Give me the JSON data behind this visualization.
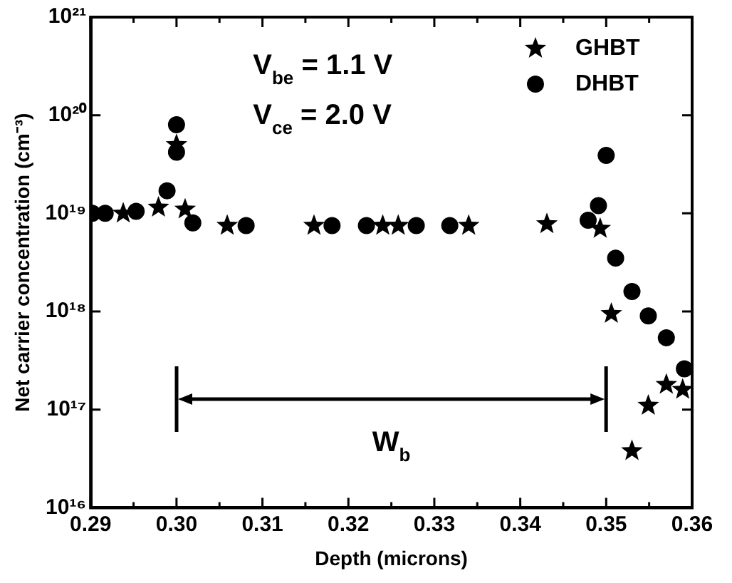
{
  "chart_data": {
    "type": "scatter",
    "xlabel": "Depth (microns)",
    "ylabel": "Net carrier concentration (cm⁻³)",
    "log": "y",
    "xlim": [
      0.29,
      0.36
    ],
    "xticks": [
      0.29,
      {
        "value": 0.295,
        "label": null
      },
      "0.30",
      {
        "value": 0.305,
        "label": null
      },
      0.31,
      {
        "value": 0.315,
        "label": null
      },
      0.32,
      {
        "value": 0.325,
        "label": null
      },
      0.33,
      {
        "value": 0.335,
        "label": null
      },
      0.34,
      {
        "value": 0.345,
        "label": null
      },
      0.35,
      {
        "value": 0.355,
        "label": null
      },
      0.36
    ],
    "ylim": [
      1e+16,
      1e+21
    ],
    "yticks": [
      {
        "value": 1e+16,
        "label": "10¹⁶"
      },
      {
        "value": 1e+17,
        "label": "10¹⁷"
      },
      {
        "value": 1e+18,
        "label": "10¹⁸"
      },
      {
        "value": 1e+19,
        "label": "10¹⁹"
      },
      {
        "value": 1e+20,
        "label": "10²⁰"
      },
      {
        "value": 1e+21,
        "label": "10²¹"
      }
    ],
    "legend": "top right",
    "grid": false,
    "series": [
      {
        "name": "GHBT",
        "color": "#000000",
        "marker": "star",
        "x": [
          0.2938,
          0.2979,
          0.3,
          0.301,
          0.3059,
          0.316,
          0.324,
          0.3258,
          0.334,
          0.3431,
          0.3493,
          0.3506,
          0.353,
          0.3549,
          0.357,
          0.3589
        ],
        "values": [
          1e+19,
          1.15e+19,
          5e+19,
          1.1e+19,
          7.5e+18,
          7.5e+18,
          7.5e+18,
          7.5e+18,
          7.5e+18,
          7.8e+18,
          7e+18,
          9.5e+17,
          3.8e+16,
          1.1e+17,
          1.8e+17,
          1.6e+17
        ]
      },
      {
        "name": "DHBT",
        "color": "#000000",
        "marker": "circle",
        "x": [
          0.2902,
          0.2917,
          0.2953,
          0.2989,
          0.3,
          0.3,
          0.3019,
          0.3081,
          0.3181,
          0.3221,
          0.3279,
          0.3318,
          0.3479,
          0.3491,
          0.35,
          0.3511,
          0.353,
          0.3549,
          0.357,
          0.3591
        ],
        "values": [
          1e+19,
          1e+19,
          1.05e+19,
          1.7e+19,
          8e+19,
          4.2e+19,
          8e+18,
          7.5e+18,
          7.5e+18,
          7.5e+18,
          7.5e+18,
          7.5e+18,
          8.5e+18,
          1.2e+19,
          3.9e+19,
          3.5e+18,
          1.6e+18,
          9e+17,
          5.4e+17,
          2.6e+17
        ]
      }
    ],
    "annotations": [
      "V$_{be}$ = 1.1 V",
      "V$_{ce}$ = 2.0 V",
      "W$_{b}$"
    ]
  }
}
